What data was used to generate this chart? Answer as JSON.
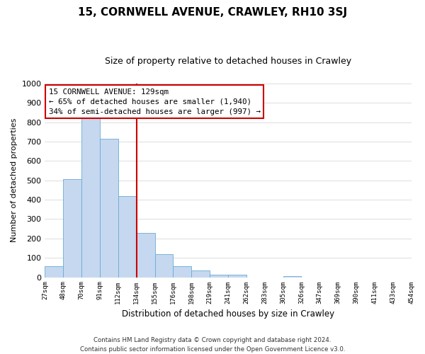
{
  "title": "15, CORNWELL AVENUE, CRAWLEY, RH10 3SJ",
  "subtitle": "Size of property relative to detached houses in Crawley",
  "xlabel": "Distribution of detached houses by size in Crawley",
  "ylabel": "Number of detached properties",
  "bin_labels": [
    "27sqm",
    "48sqm",
    "70sqm",
    "91sqm",
    "112sqm",
    "134sqm",
    "155sqm",
    "176sqm",
    "198sqm",
    "219sqm",
    "241sqm",
    "262sqm",
    "283sqm",
    "305sqm",
    "326sqm",
    "347sqm",
    "369sqm",
    "390sqm",
    "411sqm",
    "433sqm",
    "454sqm"
  ],
  "bar_values": [
    57,
    505,
    825,
    715,
    420,
    230,
    118,
    57,
    35,
    12,
    12,
    0,
    0,
    5,
    0,
    0,
    0,
    0,
    0,
    0
  ],
  "bar_color": "#c5d8ef",
  "bar_edge_color": "#6aaad4",
  "vline_color": "#cc0000",
  "ylim": [
    0,
    1000
  ],
  "yticks": [
    0,
    100,
    200,
    300,
    400,
    500,
    600,
    700,
    800,
    900,
    1000
  ],
  "annotation_title": "15 CORNWELL AVENUE: 129sqm",
  "annotation_line1": "← 65% of detached houses are smaller (1,940)",
  "annotation_line2": "34% of semi-detached houses are larger (997) →",
  "annotation_box_color": "#ffffff",
  "annotation_box_edge": "#cc0000",
  "footer1": "Contains HM Land Registry data © Crown copyright and database right 2024.",
  "footer2": "Contains public sector information licensed under the Open Government Licence v3.0.",
  "background_color": "#ffffff",
  "grid_color": "#d0d0d0"
}
